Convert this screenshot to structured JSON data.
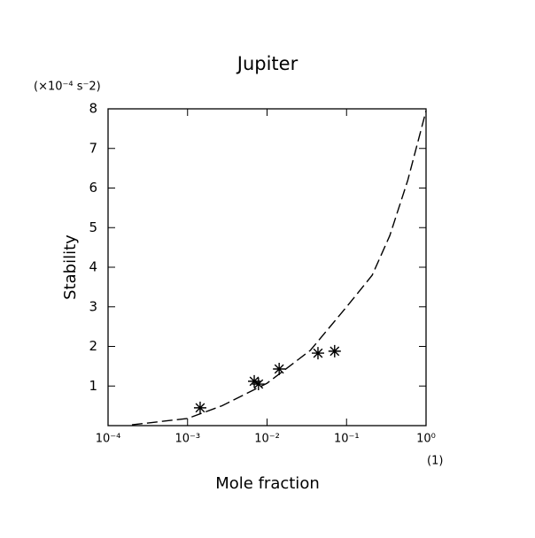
{
  "chart_data": {
    "type": "line",
    "title": "Jupiter",
    "x_label": "Mole fraction",
    "y_label": "Stability",
    "x_unit": "(1)",
    "y_unit": "(×10⁻⁴ s⁻2)",
    "x_scale": "log",
    "xlim": [
      0.0001,
      1
    ],
    "xticks": [
      {
        "value": 0.0001,
        "label": "10⁻⁴"
      },
      {
        "value": 0.001,
        "label": "10⁻³"
      },
      {
        "value": 0.01,
        "label": "10⁻²"
      },
      {
        "value": 0.1,
        "label": "10⁻¹"
      },
      {
        "value": 1,
        "label": "10⁰"
      }
    ],
    "ylim": [
      0,
      8
    ],
    "yticks": [
      1,
      2,
      3,
      4,
      5,
      6,
      7,
      8
    ],
    "series": [
      {
        "type": "line",
        "style": "dashed",
        "color": "#000000",
        "x": [
          0.0002,
          0.001,
          0.0027,
          0.01,
          0.035,
          0.1,
          0.21,
          0.35,
          0.59,
          1
        ],
        "values": [
          0.02,
          0.18,
          0.5,
          1.07,
          1.9,
          3.0,
          3.8,
          4.8,
          6.2,
          7.95
        ]
      },
      {
        "type": "scatter",
        "marker": "star",
        "color": "#000000",
        "x": [
          0.00144,
          0.0069,
          0.0078,
          0.0142,
          0.0437,
          0.0708
        ],
        "values": [
          0.45,
          1.12,
          1.05,
          1.43,
          1.83,
          1.88
        ]
      }
    ]
  }
}
